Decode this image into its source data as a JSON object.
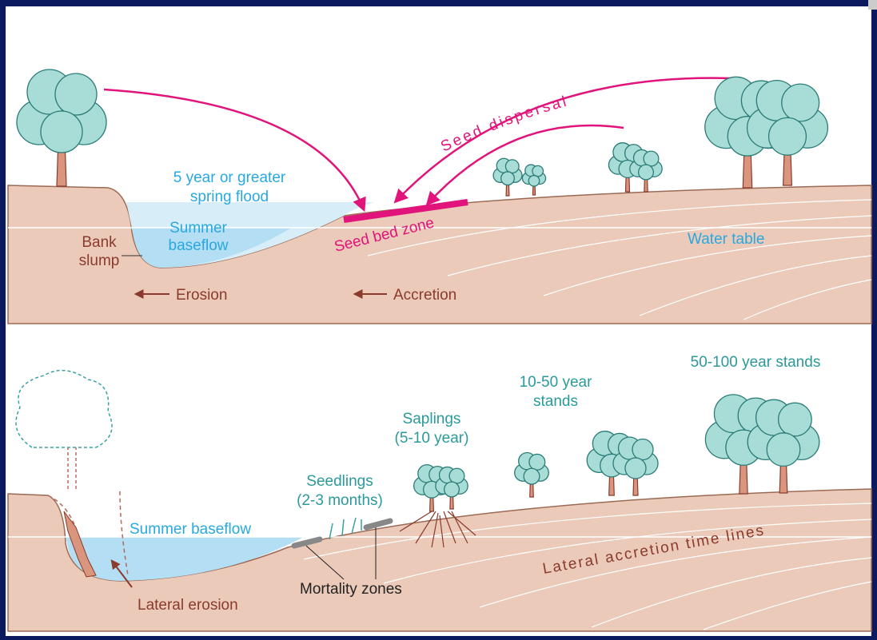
{
  "top_panel": {
    "flood_label": [
      "5 year or greater",
      "spring flood"
    ],
    "baseflow_label": [
      "Summer",
      "baseflow"
    ],
    "bank_slump_label": [
      "Bank",
      "slump"
    ],
    "seed_dispersal_label": "Seed dispersal",
    "seed_bed_label": "Seed bed zone",
    "water_table_label": "Water table",
    "erosion_label": "Erosion",
    "accretion_label": "Accretion"
  },
  "bottom_panel": {
    "old_stands_label": "50-100 year stands",
    "mid_stands_label": [
      "10-50 year",
      "stands"
    ],
    "saplings_label": [
      "Saplings",
      "(5-10 year)"
    ],
    "seedlings_label": [
      "Seedlings",
      "(2-3 months)"
    ],
    "baseflow_label": "Summer baseflow",
    "mortality_label": "Mortality zones",
    "timelines_label": "Lateral accretion time lines",
    "lateral_erosion_label": "Lateral erosion"
  }
}
